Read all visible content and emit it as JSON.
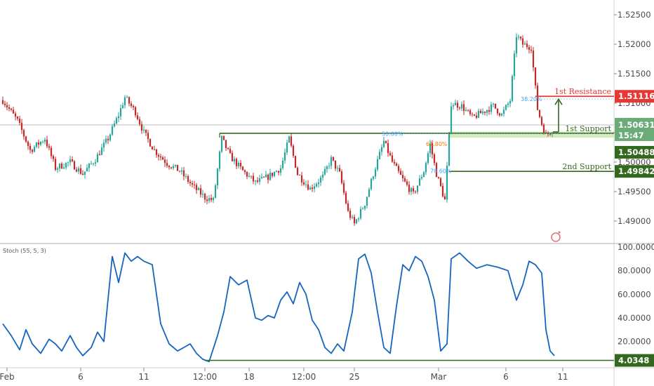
{
  "chart_data": [
    {
      "type": "candlestick",
      "title": "",
      "ylim": [
        1.4863,
        1.5275
      ],
      "y_ticks": [
        "1.52500",
        "1.52000",
        "1.51500",
        "1.51000",
        "1.50500",
        "1.50000",
        "1.49500",
        "1.49000"
      ],
      "x_ticks": [
        "Feb",
        "6",
        "11",
        "12:00",
        "18",
        "12:00",
        "25",
        "Mar",
        "6",
        "11"
      ],
      "approx_close_path": [
        [
          0,
          1.5105
        ],
        [
          7,
          1.507
        ],
        [
          13,
          1.502
        ],
        [
          20,
          1.504
        ],
        [
          25,
          1.499
        ],
        [
          32,
          1.5
        ],
        [
          38,
          1.498
        ],
        [
          44,
          1.5005
        ],
        [
          50,
          1.504
        ],
        [
          55,
          1.508
        ],
        [
          58,
          1.511
        ],
        [
          63,
          1.5085
        ],
        [
          67,
          1.505
        ],
        [
          72,
          1.502
        ],
        [
          78,
          1.4998
        ],
        [
          84,
          1.4985
        ],
        [
          90,
          1.496
        ],
        [
          96,
          1.494
        ],
        [
          100,
          1.4935
        ],
        [
          104,
          1.504
        ],
        [
          108,
          1.501
        ],
        [
          114,
          1.4985
        ],
        [
          120,
          1.4965
        ],
        [
          126,
          1.4975
        ],
        [
          132,
          1.499
        ],
        [
          136,
          1.504
        ],
        [
          140,
          1.498
        ],
        [
          146,
          1.4955
        ],
        [
          152,
          1.4975
        ],
        [
          156,
          1.5005
        ],
        [
          160,
          1.498
        ],
        [
          164,
          1.4915
        ],
        [
          167,
          1.4895
        ],
        [
          172,
          1.493
        ],
        [
          176,
          1.498
        ],
        [
          181,
          1.5035
        ],
        [
          185,
          1.5
        ],
        [
          190,
          1.497
        ],
        [
          195,
          1.4945
        ],
        [
          200,
          1.4985
        ],
        [
          203,
          1.503
        ],
        [
          206,
          1.498
        ],
        [
          210,
          1.4935
        ],
        [
          213,
          1.51
        ],
        [
          218,
          1.5095
        ],
        [
          223,
          1.5075
        ],
        [
          228,
          1.5085
        ],
        [
          233,
          1.5095
        ],
        [
          237,
          1.508
        ],
        [
          241,
          1.5105
        ],
        [
          244,
          1.5215
        ],
        [
          247,
          1.52
        ],
        [
          251,
          1.5195
        ],
        [
          254,
          1.509
        ],
        [
          256,
          1.5065
        ],
        [
          258,
          1.5045
        ],
        [
          261,
          1.5055
        ]
      ],
      "annotations": [
        {
          "label": "1st Resistance",
          "value": "1.51116",
          "color": "#e53935"
        },
        {
          "label": "1st Support",
          "value": "1.50488",
          "color": "#33691e"
        },
        {
          "label": "2nd Support",
          "value": "1.49842",
          "color": "#33691e"
        }
      ],
      "current_price": "1.50631",
      "countdown": "15:47",
      "fib_labels": [
        {
          "text": "38.20%",
          "price": 1.5107,
          "color": "#42a5f5"
        },
        {
          "text": "50.00%",
          "price": 1.5048,
          "color": "#42a5f5"
        },
        {
          "text": "61.80%",
          "price": 1.5031,
          "color": "#f57c00"
        },
        {
          "text": "78.60%",
          "price": 1.4985,
          "color": "#42a5f5"
        }
      ],
      "colors": {
        "up": "#26a69a",
        "down": "#c62828",
        "resistance": "#e53935",
        "support": "#33691e"
      }
    },
    {
      "type": "line",
      "title": "Stoch (55, 5, 3)",
      "ylim": [
        0,
        100
      ],
      "y_ticks": [
        "100.0000",
        "80.0000",
        "60.0000",
        "40.0000",
        "20.0000"
      ],
      "support_value": "4.0348",
      "series": [
        {
          "values": [
            [
              0,
              35
            ],
            [
              4,
              25
            ],
            [
              8,
              13
            ],
            [
              11,
              30
            ],
            [
              14,
              18
            ],
            [
              18,
              10
            ],
            [
              22,
              22
            ],
            [
              25,
              18
            ],
            [
              28,
              12
            ],
            [
              32,
              25
            ],
            [
              35,
              15
            ],
            [
              38,
              8
            ],
            [
              42,
              15
            ],
            [
              45,
              28
            ],
            [
              48,
              20
            ],
            [
              52,
              92
            ],
            [
              55,
              70
            ],
            [
              58,
              95
            ],
            [
              61,
              88
            ],
            [
              64,
              92
            ],
            [
              67,
              88
            ],
            [
              71,
              85
            ],
            [
              75,
              35
            ],
            [
              79,
              18
            ],
            [
              83,
              12
            ],
            [
              86,
              15
            ],
            [
              89,
              18
            ],
            [
              92,
              10
            ],
            [
              95,
              5
            ],
            [
              98,
              3
            ],
            [
              102,
              25
            ],
            [
              105,
              45
            ],
            [
              108,
              75
            ],
            [
              112,
              68
            ],
            [
              116,
              72
            ],
            [
              120,
              40
            ],
            [
              123,
              38
            ],
            [
              126,
              42
            ],
            [
              129,
              40
            ],
            [
              132,
              55
            ],
            [
              135,
              62
            ],
            [
              138,
              52
            ],
            [
              141,
              70
            ],
            [
              144,
              60
            ],
            [
              147,
              38
            ],
            [
              150,
              30
            ],
            [
              153,
              15
            ],
            [
              156,
              10
            ],
            [
              159,
              18
            ],
            [
              162,
              12
            ],
            [
              166,
              45
            ],
            [
              169,
              90
            ],
            [
              172,
              94
            ],
            [
              175,
              78
            ],
            [
              178,
              45
            ],
            [
              181,
              15
            ],
            [
              184,
              10
            ],
            [
              187,
              50
            ],
            [
              190,
              85
            ],
            [
              193,
              80
            ],
            [
              196,
              92
            ],
            [
              199,
              88
            ],
            [
              202,
              75
            ],
            [
              205,
              55
            ],
            [
              208,
              12
            ],
            [
              211,
              18
            ],
            [
              213,
              90
            ],
            [
              217,
              95
            ],
            [
              221,
              88
            ],
            [
              225,
              82
            ],
            [
              230,
              85
            ],
            [
              235,
              83
            ],
            [
              240,
              80
            ],
            [
              244,
              55
            ],
            [
              247,
              68
            ],
            [
              250,
              88
            ],
            [
              253,
              85
            ],
            [
              256,
              78
            ],
            [
              258,
              30
            ],
            [
              260,
              12
            ],
            [
              262,
              8
            ]
          ]
        }
      ],
      "color": "#1565c0"
    }
  ]
}
